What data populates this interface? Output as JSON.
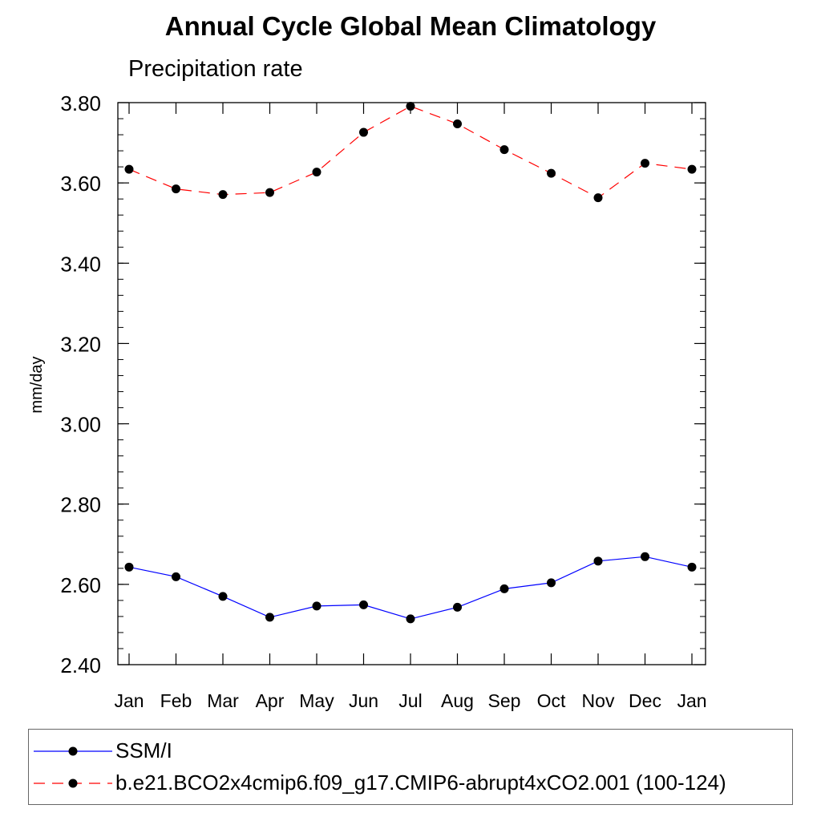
{
  "title": "Annual Cycle Global Mean Climatology",
  "subtitle": "Precipitation rate",
  "chart_data": {
    "type": "line",
    "ylabel": "mm/day",
    "xlabel": "",
    "categories": [
      "Jan",
      "Feb",
      "Mar",
      "Apr",
      "May",
      "Jun",
      "Jul",
      "Aug",
      "Sep",
      "Oct",
      "Nov",
      "Dec",
      "Jan"
    ],
    "ylim": [
      2.4,
      3.8
    ],
    "yticks": [
      "2.40",
      "2.60",
      "2.80",
      "3.00",
      "3.20",
      "3.40",
      "3.60",
      "3.80"
    ],
    "grid": false,
    "legend_position": "bottom",
    "series": [
      {
        "name": "SSM/I",
        "color": "#0000ff",
        "dash": "solid",
        "marker": "filled-circle",
        "values": [
          2.643,
          2.619,
          2.57,
          2.518,
          2.546,
          2.549,
          2.514,
          2.543,
          2.589,
          2.604,
          2.658,
          2.669,
          2.643
        ]
      },
      {
        "name": "b.e21.BCO2x4cmip6.f09_g17.CMIP6-abrupt4xCO2.001 (100-124)",
        "color": "#ff0000",
        "dash": "dashed",
        "marker": "filled-circle",
        "values": [
          3.634,
          3.585,
          3.571,
          3.576,
          3.627,
          3.726,
          3.791,
          3.747,
          3.683,
          3.624,
          3.563,
          3.649,
          3.634
        ]
      }
    ]
  }
}
